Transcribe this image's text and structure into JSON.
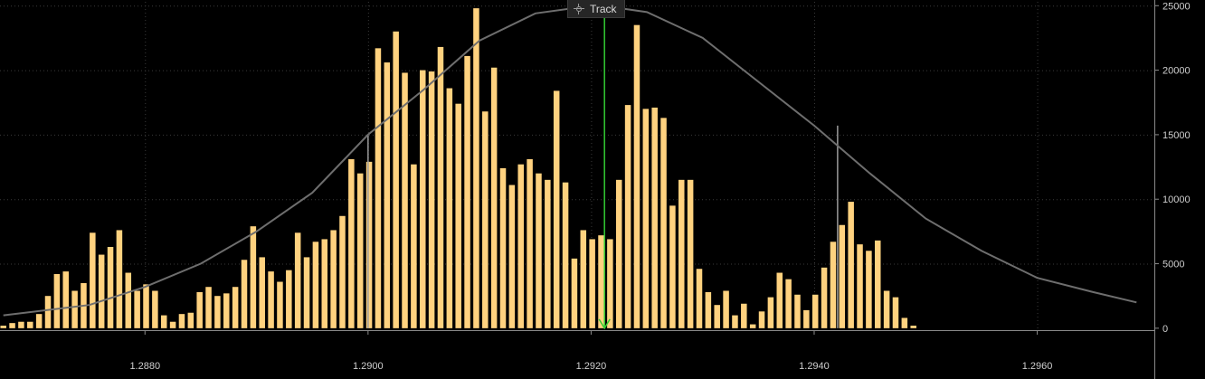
{
  "track_button": {
    "label": "Track",
    "icon": "crosshair-icon"
  },
  "colors": {
    "bar": "#ffd27f",
    "curve": "#6e6e6e",
    "marker": "#33cc33",
    "axis": "#8a8a8a"
  },
  "chart_data": {
    "type": "bar",
    "title": "",
    "xlabel": "",
    "ylabel": "",
    "x_ticks": [
      "1.2880",
      "1.2900",
      "1.2920",
      "1.2940",
      "1.2960"
    ],
    "x_tick_values": [
      1.288,
      1.29,
      1.292,
      1.294,
      1.296
    ],
    "y_ticks": [
      "0",
      "5000",
      "10000",
      "15000",
      "20000",
      "25000"
    ],
    "y_tick_values": [
      0,
      5000,
      10000,
      15000,
      20000,
      25000
    ],
    "ylim": [
      -150,
      25300
    ],
    "xlim": [
      1.2867,
      1.29705
    ],
    "grid": true,
    "y_axis_position": "right",
    "bar_start": 1.28673,
    "bar_step": 8e-05,
    "values": [
      200,
      400,
      500,
      500,
      1100,
      2500,
      4200,
      4400,
      2900,
      3500,
      7400,
      5700,
      6300,
      7600,
      4300,
      2900,
      3400,
      2900,
      1000,
      500,
      1100,
      1200,
      2800,
      3200,
      2500,
      2700,
      3200,
      5300,
      7900,
      5500,
      4400,
      3600,
      4500,
      7400,
      5500,
      6700,
      6900,
      7600,
      8700,
      13100,
      12000,
      12900,
      21700,
      20600,
      23000,
      19800,
      12700,
      20000,
      19900,
      21800,
      18600,
      17400,
      21100,
      24800,
      16800,
      20200,
      12400,
      11100,
      12700,
      13100,
      12000,
      11500,
      18400,
      11300,
      5400,
      7600,
      6900,
      7200,
      6900,
      11500,
      17300,
      23500,
      17000,
      17100,
      16300,
      9500,
      11500,
      11500,
      4600,
      2800,
      1800,
      2900,
      1000,
      1900,
      300,
      1300,
      2400,
      4300,
      3800,
      2600,
      1400,
      2600,
      4700,
      6700,
      8000,
      9800,
      6500,
      6000,
      6800,
      2900,
      2400,
      800,
      200
    ],
    "curve": {
      "name": "",
      "x": [
        1.28673,
        1.2875,
        1.288,
        1.2885,
        1.289,
        1.2895,
        1.29,
        1.2905,
        1.291,
        1.2915,
        1.292,
        1.2921,
        1.2925,
        1.293,
        1.2935,
        1.294,
        1.2945,
        1.295,
        1.2955,
        1.296,
        1.2965,
        1.29689
      ],
      "y": [
        1000,
        1800,
        3200,
        5000,
        7500,
        10500,
        15000,
        18500,
        22300,
        24400,
        25000,
        25000,
        24500,
        22500,
        19100,
        15700,
        12000,
        8500,
        6000,
        3900,
        2800,
        2000
      ]
    },
    "verticals": [
      {
        "x": 1.29,
        "y": 15000
      },
      {
        "x": 1.29421,
        "y": 15700
      }
    ],
    "marker": {
      "x": 1.29212,
      "y_top": 25000,
      "y_bottom": 0
    }
  }
}
